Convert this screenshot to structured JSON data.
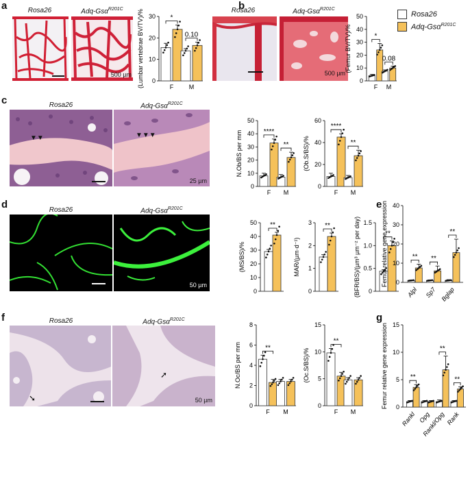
{
  "panels": [
    {
      "letter": "a",
      "images": [
        {
          "title": "Rosa26"
        },
        {
          "title": "Adq-Gsα",
          "sup": "R201C",
          "scale": "500 µm"
        }
      ]
    },
    {
      "letter": "b",
      "images": [
        {
          "title": "Rosa26"
        },
        {
          "title": "Adq-Gsα",
          "sup": "R201C",
          "scale": "500 µm"
        }
      ]
    },
    {
      "letter": "c",
      "images": [
        {
          "title": "Rosa26"
        },
        {
          "title": "Adq-Gsα",
          "sup": "R201C",
          "scale": "25 µm"
        }
      ]
    },
    {
      "letter": "d",
      "images": [
        {
          "title": "Rosa26"
        },
        {
          "title": "Adq-Gsα",
          "sup": "R201C",
          "scale": "50 µm"
        }
      ]
    },
    {
      "letter": "e",
      "images": []
    },
    {
      "letter": "f",
      "images": [
        {
          "title": "Rosa26"
        },
        {
          "title": "Adq-Gsα",
          "sup": "R201C",
          "scale": "50 µm"
        }
      ]
    },
    {
      "letter": "g",
      "images": []
    }
  ],
  "legend": [
    {
      "label": "Rosa26",
      "color": "#ffffff"
    },
    {
      "label": "Adq-Gsα",
      "sup": "R201C",
      "color": "#f5c15a"
    }
  ],
  "colors": {
    "control": "#ffffff",
    "mutant": "#f5c15a",
    "stroke": "#333333"
  },
  "chart_data": [
    {
      "id": "a-bvtv",
      "type": "bar",
      "ylabel": "(Lumbar vertebrae BV/TV)/%",
      "ylim": [
        0,
        30
      ],
      "yticks": [
        0,
        10,
        20,
        30
      ],
      "categories": [
        "F",
        "M"
      ],
      "series": [
        {
          "values": [
            15.5,
            14.0
          ],
          "errors": [
            2.0,
            1.0
          ]
        },
        {
          "values": [
            24.0,
            16.5
          ],
          "errors": [
            2.0,
            1.5
          ]
        }
      ],
      "annotations": [
        {
          "group": 0,
          "text": "*"
        },
        {
          "group": 1,
          "text": "0.10"
        }
      ]
    },
    {
      "id": "b-bvtv",
      "type": "bar",
      "ylabel": "(Femur BV/TV)/%",
      "ylim": [
        0,
        50
      ],
      "yticks": [
        0,
        10,
        20,
        30,
        40,
        50
      ],
      "categories": [
        "F",
        "M"
      ],
      "series": [
        {
          "values": [
            4.0,
            7.5
          ],
          "errors": [
            1.0,
            1.0
          ]
        },
        {
          "values": [
            24.0,
            10.0
          ],
          "errors": [
            5.0,
            1.5
          ]
        }
      ],
      "annotations": [
        {
          "group": 0,
          "text": "*"
        },
        {
          "group": 1,
          "text": "0.08"
        }
      ]
    },
    {
      "id": "c-nob",
      "type": "bar",
      "ylabel": "N.Ob/BS per mm",
      "ylim": [
        0,
        50
      ],
      "yticks": [
        0,
        10,
        20,
        30,
        40,
        50
      ],
      "categories": [
        "F",
        "M"
      ],
      "series": [
        {
          "values": [
            8.0,
            7.0
          ],
          "errors": [
            2.0,
            2.0
          ]
        },
        {
          "values": [
            33.0,
            22.0
          ],
          "errors": [
            3.0,
            4.0
          ]
        }
      ],
      "annotations": [
        {
          "group": 0,
          "text": "****"
        },
        {
          "group": 1,
          "text": "**"
        }
      ]
    },
    {
      "id": "c-obs",
      "type": "bar",
      "ylabel": "(Ob.S/BS)/%",
      "ylim": [
        0,
        60
      ],
      "yticks": [
        0,
        20,
        40,
        60
      ],
      "categories": [
        "F",
        "M"
      ],
      "series": [
        {
          "values": [
            9.0,
            8.0
          ],
          "errors": [
            3.0,
            2.0
          ]
        },
        {
          "values": [
            45.0,
            28.0
          ],
          "errors": [
            3.0,
            5.0
          ]
        }
      ],
      "annotations": [
        {
          "group": 0,
          "text": "****"
        },
        {
          "group": 1,
          "text": "**"
        }
      ]
    },
    {
      "id": "d-ms",
      "type": "bar",
      "ylabel": "(MS/BS)/%",
      "ylim": [
        0,
        50
      ],
      "yticks": [
        0,
        10,
        20,
        30,
        40,
        50
      ],
      "categories": [
        ""
      ],
      "series": [
        {
          "values": [
            29.0
          ],
          "errors": [
            1.5
          ]
        },
        {
          "values": [
            41.0
          ],
          "errors": [
            2.0
          ]
        }
      ],
      "annotations": [
        {
          "group": 0,
          "text": "**"
        }
      ]
    },
    {
      "id": "d-mar",
      "type": "bar",
      "ylabel": "MAR/(µm·d⁻¹)",
      "ylim": [
        0,
        3
      ],
      "yticks": [
        0,
        1,
        2,
        3
      ],
      "categories": [
        ""
      ],
      "series": [
        {
          "values": [
            1.5
          ],
          "errors": [
            0.1
          ]
        },
        {
          "values": [
            2.4
          ],
          "errors": [
            0.15
          ]
        }
      ],
      "annotations": [
        {
          "group": 0,
          "text": "**"
        }
      ]
    },
    {
      "id": "d-bfr",
      "type": "bar",
      "ylabel": "(BFR/BS)/(µm³ µm⁻² per day)",
      "ylim": [
        0,
        1.5
      ],
      "yticks": [
        0,
        0.5,
        1.0,
        1.5
      ],
      "ytick_labels": [
        "0",
        "0.5",
        "1.0",
        "1.5"
      ],
      "categories": [
        ""
      ],
      "series": [
        {
          "values": [
            0.44
          ],
          "errors": [
            0.03
          ]
        },
        {
          "values": [
            1.0
          ],
          "errors": [
            0.1
          ]
        }
      ],
      "annotations": [
        {
          "group": 0,
          "text": "**"
        }
      ]
    },
    {
      "id": "e-expr",
      "type": "bar",
      "ylabel": "Femur relative gene expression",
      "ylim": [
        0,
        40
      ],
      "yticks": [
        0,
        10,
        20,
        30,
        40
      ],
      "categories": [
        "Alpl",
        "Sp7",
        "Bglap"
      ],
      "series": [
        {
          "values": [
            1.0,
            1.0,
            1.0
          ],
          "errors": [
            0.2,
            0.3,
            0.4
          ]
        },
        {
          "values": [
            7.5,
            6.0,
            15.5
          ],
          "errors": [
            2.0,
            2.5,
            7.0
          ]
        }
      ],
      "annotations": [
        {
          "group": 0,
          "text": "**"
        },
        {
          "group": 1,
          "text": "**"
        },
        {
          "group": 2,
          "text": "**"
        }
      ]
    },
    {
      "id": "f-noc",
      "type": "bar",
      "ylabel": "N.Oc/BS per mm",
      "ylim": [
        0,
        8
      ],
      "yticks": [
        0,
        2,
        4,
        6,
        8
      ],
      "categories": [
        "F",
        "M"
      ],
      "series": [
        {
          "values": [
            4.6,
            2.4
          ],
          "errors": [
            0.4,
            0.2
          ]
        },
        {
          "values": [
            2.3,
            2.4
          ],
          "errors": [
            0.3,
            0.2
          ]
        }
      ],
      "annotations": [
        {
          "group": 0,
          "text": "**"
        }
      ]
    },
    {
      "id": "f-ocs",
      "type": "bar",
      "ylabel": "(Oc.S/BS)/%",
      "ylim": [
        0,
        15
      ],
      "yticks": [
        0,
        5,
        10,
        15
      ],
      "categories": [
        "F",
        "M"
      ],
      "series": [
        {
          "values": [
            9.8,
            4.8
          ],
          "errors": [
            0.8,
            0.4
          ]
        },
        {
          "values": [
            5.5,
            4.8
          ],
          "errors": [
            0.7,
            0.4
          ]
        }
      ],
      "annotations": [
        {
          "group": 0,
          "text": "**"
        }
      ]
    },
    {
      "id": "g-expr",
      "type": "bar",
      "ylabel": "Femur relative gene expression",
      "ylim": [
        0,
        15
      ],
      "yticks": [
        0,
        5,
        10,
        15
      ],
      "categories": [
        "Rankl",
        "Opg",
        "Rankl/Opg",
        "Rank"
      ],
      "series": [
        {
          "values": [
            1.0,
            1.0,
            1.0,
            1.0
          ],
          "errors": [
            0.2,
            0.2,
            0.3,
            0.2
          ]
        },
        {
          "values": [
            3.6,
            1.0,
            6.8,
            3.3
          ],
          "errors": [
            0.5,
            0.2,
            2.5,
            0.4
          ]
        }
      ],
      "annotations": [
        {
          "group": 0,
          "text": "**"
        },
        {
          "group": 2,
          "text": "**"
        },
        {
          "group": 3,
          "text": "**"
        }
      ]
    }
  ]
}
